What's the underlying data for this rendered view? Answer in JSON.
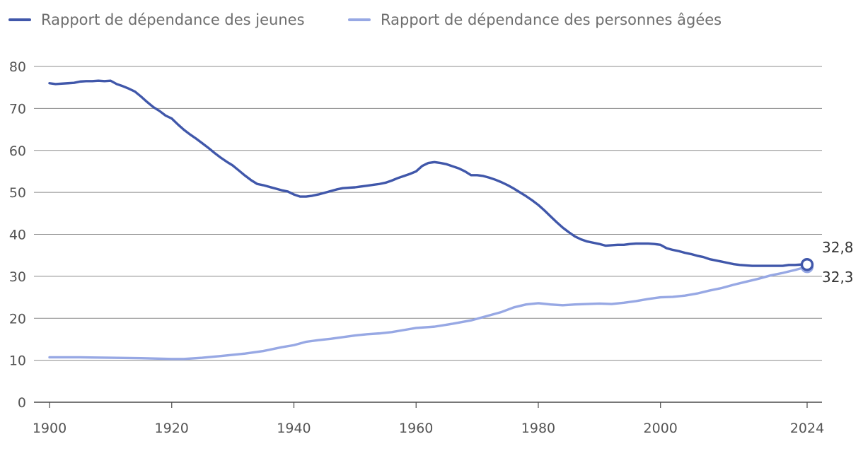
{
  "chart_data": {
    "type": "line",
    "title": "",
    "xlabel": "",
    "ylabel": "",
    "xlim": [
      1900,
      2024
    ],
    "ylim": [
      0,
      80
    ],
    "x_ticks": [
      1900,
      1920,
      1940,
      1960,
      1980,
      2000,
      2024
    ],
    "x_tick_labels": [
      "1900",
      "1920",
      "1940",
      "1960",
      "1980",
      "2000",
      "2024"
    ],
    "y_ticks": [
      0,
      10,
      20,
      30,
      40,
      50,
      60,
      70,
      80
    ],
    "y_tick_labels": [
      "0",
      "10",
      "20",
      "30",
      "40",
      "50",
      "60",
      "70",
      "80"
    ],
    "grid": "horizontal",
    "legend_position": "top-left",
    "series": [
      {
        "name": "Rapport de dépendance des jeunes",
        "color": "#4057aa",
        "end_label": "32,8",
        "points": [
          [
            1900,
            76.0
          ],
          [
            1901,
            75.8
          ],
          [
            1902,
            75.9
          ],
          [
            1903,
            76.0
          ],
          [
            1904,
            76.1
          ],
          [
            1905,
            76.4
          ],
          [
            1906,
            76.5
          ],
          [
            1907,
            76.5
          ],
          [
            1908,
            76.6
          ],
          [
            1909,
            76.5
          ],
          [
            1910,
            76.6
          ],
          [
            1911,
            75.8
          ],
          [
            1912,
            75.3
          ],
          [
            1913,
            74.7
          ],
          [
            1914,
            74.0
          ],
          [
            1915,
            72.8
          ],
          [
            1916,
            71.5
          ],
          [
            1917,
            70.3
          ],
          [
            1918,
            69.4
          ],
          [
            1919,
            68.3
          ],
          [
            1920,
            67.6
          ],
          [
            1921,
            66.2
          ],
          [
            1922,
            64.9
          ],
          [
            1923,
            63.8
          ],
          [
            1924,
            62.8
          ],
          [
            1925,
            61.7
          ],
          [
            1926,
            60.6
          ],
          [
            1927,
            59.4
          ],
          [
            1928,
            58.3
          ],
          [
            1929,
            57.3
          ],
          [
            1930,
            56.4
          ],
          [
            1931,
            55.2
          ],
          [
            1932,
            54.0
          ],
          [
            1933,
            52.9
          ],
          [
            1934,
            52.0
          ],
          [
            1935,
            51.7
          ],
          [
            1936,
            51.3
          ],
          [
            1937,
            50.9
          ],
          [
            1938,
            50.5
          ],
          [
            1939,
            50.2
          ],
          [
            1940,
            49.5
          ],
          [
            1941,
            49.0
          ],
          [
            1942,
            49.0
          ],
          [
            1943,
            49.2
          ],
          [
            1944,
            49.5
          ],
          [
            1945,
            49.9
          ],
          [
            1946,
            50.3
          ],
          [
            1947,
            50.7
          ],
          [
            1948,
            51.0
          ],
          [
            1949,
            51.1
          ],
          [
            1950,
            51.2
          ],
          [
            1951,
            51.4
          ],
          [
            1952,
            51.6
          ],
          [
            1953,
            51.8
          ],
          [
            1954,
            52.0
          ],
          [
            1955,
            52.3
          ],
          [
            1956,
            52.8
          ],
          [
            1957,
            53.4
          ],
          [
            1958,
            53.9
          ],
          [
            1959,
            54.4
          ],
          [
            1960,
            55.0
          ],
          [
            1961,
            56.3
          ],
          [
            1962,
            57.0
          ],
          [
            1963,
            57.2
          ],
          [
            1964,
            57.0
          ],
          [
            1965,
            56.7
          ],
          [
            1966,
            56.2
          ],
          [
            1967,
            55.7
          ],
          [
            1968,
            55.0
          ],
          [
            1969,
            54.1
          ],
          [
            1970,
            54.1
          ],
          [
            1971,
            53.9
          ],
          [
            1972,
            53.5
          ],
          [
            1973,
            53.0
          ],
          [
            1974,
            52.4
          ],
          [
            1975,
            51.7
          ],
          [
            1976,
            50.9
          ],
          [
            1977,
            50.0
          ],
          [
            1978,
            49.1
          ],
          [
            1979,
            48.1
          ],
          [
            1980,
            47.0
          ],
          [
            1981,
            45.7
          ],
          [
            1982,
            44.3
          ],
          [
            1983,
            42.9
          ],
          [
            1984,
            41.6
          ],
          [
            1985,
            40.5
          ],
          [
            1986,
            39.5
          ],
          [
            1987,
            38.8
          ],
          [
            1988,
            38.3
          ],
          [
            1989,
            38.0
          ],
          [
            1990,
            37.7
          ],
          [
            1991,
            37.3
          ],
          [
            1992,
            37.4
          ],
          [
            1993,
            37.5
          ],
          [
            1994,
            37.5
          ],
          [
            1995,
            37.7
          ],
          [
            1996,
            37.8
          ],
          [
            1997,
            37.8
          ],
          [
            1998,
            37.8
          ],
          [
            1999,
            37.7
          ],
          [
            2000,
            37.5
          ],
          [
            2001,
            36.7
          ],
          [
            2002,
            36.3
          ],
          [
            2003,
            36.0
          ],
          [
            2004,
            35.6
          ],
          [
            2005,
            35.3
          ],
          [
            2006,
            34.9
          ],
          [
            2007,
            34.6
          ],
          [
            2008,
            34.1
          ],
          [
            2009,
            33.8
          ],
          [
            2010,
            33.5
          ],
          [
            2011,
            33.2
          ],
          [
            2012,
            32.9
          ],
          [
            2013,
            32.7
          ],
          [
            2014,
            32.6
          ],
          [
            2015,
            32.5
          ],
          [
            2016,
            32.5
          ],
          [
            2017,
            32.5
          ],
          [
            2018,
            32.5
          ],
          [
            2019,
            32.5
          ],
          [
            2020,
            32.5
          ],
          [
            2021,
            32.7
          ],
          [
            2022,
            32.7
          ],
          [
            2023,
            32.8
          ],
          [
            2024,
            32.8
          ]
        ]
      },
      {
        "name": "Rapport de dépendance des personnes âgées",
        "color": "#97a8e4",
        "end_label": "32,3",
        "points": [
          [
            1900,
            10.7
          ],
          [
            1905,
            10.7
          ],
          [
            1910,
            10.6
          ],
          [
            1915,
            10.5
          ],
          [
            1920,
            10.3
          ],
          [
            1922,
            10.3
          ],
          [
            1925,
            10.6
          ],
          [
            1928,
            11.0
          ],
          [
            1930,
            11.3
          ],
          [
            1932,
            11.6
          ],
          [
            1935,
            12.2
          ],
          [
            1938,
            13.1
          ],
          [
            1940,
            13.6
          ],
          [
            1942,
            14.4
          ],
          [
            1944,
            14.8
          ],
          [
            1946,
            15.1
          ],
          [
            1948,
            15.5
          ],
          [
            1950,
            15.9
          ],
          [
            1952,
            16.2
          ],
          [
            1954,
            16.4
          ],
          [
            1956,
            16.7
          ],
          [
            1958,
            17.2
          ],
          [
            1960,
            17.7
          ],
          [
            1963,
            18.0
          ],
          [
            1966,
            18.7
          ],
          [
            1969,
            19.5
          ],
          [
            1971,
            20.3
          ],
          [
            1974,
            21.5
          ],
          [
            1976,
            22.6
          ],
          [
            1978,
            23.3
          ],
          [
            1980,
            23.6
          ],
          [
            1982,
            23.3
          ],
          [
            1984,
            23.1
          ],
          [
            1986,
            23.3
          ],
          [
            1990,
            23.5
          ],
          [
            1992,
            23.4
          ],
          [
            1994,
            23.7
          ],
          [
            1996,
            24.1
          ],
          [
            1998,
            24.6
          ],
          [
            2000,
            25.0
          ],
          [
            2002,
            25.1
          ],
          [
            2004,
            25.4
          ],
          [
            2006,
            25.9
          ],
          [
            2008,
            26.6
          ],
          [
            2010,
            27.2
          ],
          [
            2012,
            28.0
          ],
          [
            2014,
            28.7
          ],
          [
            2016,
            29.4
          ],
          [
            2018,
            30.2
          ],
          [
            2020,
            30.8
          ],
          [
            2022,
            31.5
          ],
          [
            2024,
            32.3
          ]
        ]
      }
    ]
  }
}
